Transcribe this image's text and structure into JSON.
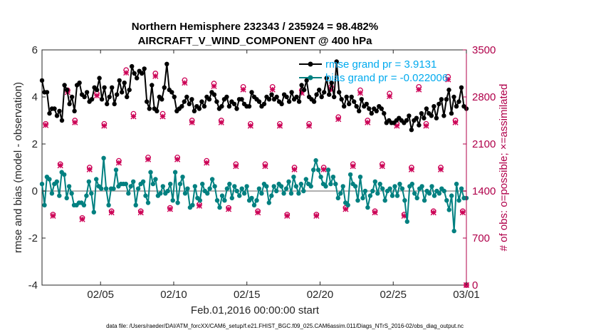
{
  "chart_data": {
    "type": "line",
    "title_line1": "Northern Hemisphere 232343 / 235924 = 98.482%",
    "title_line2": "AIRCRAFT_V_WIND_COMPONENT @ 400 hPa",
    "xlabel": "Feb.01,2016 00:00:00 start",
    "ylabel_left": "rmse and bias (model - observation)",
    "ylabel_right": "# of obs: o=possible; ×=assimilated",
    "x_ticks": [
      "02/05",
      "02/10",
      "02/15",
      "02/20",
      "02/25",
      "03/01"
    ],
    "x_tick_days": [
      4,
      9,
      14,
      19,
      24,
      29
    ],
    "xlim_days": [
      0,
      29
    ],
    "ylim_left": [
      -4,
      6
    ],
    "yticks_left": [
      "-4",
      "-2",
      "0",
      "2",
      "4",
      "6"
    ],
    "ylim_right": [
      0,
      3500
    ],
    "yticks_right": [
      "0",
      "700",
      "1400",
      "2100",
      "2800",
      "3500"
    ],
    "footer": "data file: /Users/raeder/DAI/ATM_forcXX/CAM6_setup/f.e21.FHIST_BGC.f09_025.CAM6assim.011/Diags_NTrS_2016-02/obs_diag_output.nc",
    "colors": {
      "rmse": "#000000",
      "bias": "#008080",
      "obs": "#cc0055",
      "right_axis": "#b0004a",
      "zero": "#b0b0b0"
    },
    "series": [
      {
        "name": "rmse",
        "legend": "rmse grand pr = 3.9131",
        "values": [
          4.7,
          4.2,
          4.2,
          3.3,
          3.5,
          3.5,
          3.2,
          3.4,
          3.0,
          4.5,
          4.3,
          3.7,
          4.0,
          3.4,
          4.5,
          4.6,
          4.1,
          4.0,
          4.2,
          3.8,
          3.9,
          4.4,
          4.3,
          4.8,
          3.9,
          4.4,
          3.7,
          4.0,
          4.4,
          3.7,
          4.1,
          4.7,
          4.2,
          4.6,
          4.0,
          4.3,
          5.3,
          5.0,
          4.8,
          5.1,
          5.0,
          5.2,
          3.8,
          3.5,
          4.5,
          3.5,
          3.4,
          4.0,
          3.9,
          4.4,
          5.4,
          4.3,
          4.2,
          4.0,
          3.4,
          3.5,
          3.6,
          3.8,
          4.0,
          3.7,
          3.9,
          3.4,
          3.6,
          3.5,
          3.8,
          3.6,
          4.0,
          3.9,
          4.2,
          4.1,
          3.8,
          3.5,
          3.6,
          3.9,
          4.0,
          3.6,
          3.8,
          3.7,
          3.5,
          3.9,
          3.9,
          3.7,
          3.6,
          3.6,
          4.2,
          4.0,
          3.9,
          3.8,
          3.6,
          3.7,
          4.0,
          3.9,
          4.1,
          3.9,
          4.0,
          3.8,
          3.7,
          4.1,
          4.0,
          3.8,
          4.2,
          3.9,
          4.0,
          3.8,
          4.5,
          4.3,
          4.7,
          4.0,
          3.9,
          3.8,
          4.1,
          4.3,
          4.0,
          4.2,
          4.8,
          4.1,
          4.6,
          4.0,
          5.5,
          4.2,
          3.9,
          3.6,
          4.0,
          3.7,
          4.0,
          3.8,
          3.6,
          3.4,
          3.9,
          3.6,
          3.7,
          3.5,
          3.3,
          3.5,
          3.4,
          3.6,
          3.5,
          3.3,
          2.9,
          3.0,
          2.9,
          2.9,
          3.0,
          3.1,
          3.0,
          2.9,
          3.0,
          3.2,
          2.6,
          3.0,
          3.1,
          2.8,
          3.3,
          3.1,
          3.5,
          3.3,
          3.2,
          3.6,
          3.1,
          3.7,
          3.9,
          3.2,
          3.9,
          4.3,
          3.3,
          4.0,
          3.6,
          3.8,
          4.4,
          3.6,
          3.5
        ],
        "marker": "dot"
      },
      {
        "name": "bias",
        "legend": "bias grand pr = -0.022006",
        "values": [
          0.3,
          -0.6,
          0.6,
          0.5,
          -0.1,
          0.3,
          0.4,
          -0.2,
          0.8,
          0.7,
          -0.3,
          0.2,
          -0.1,
          -0.6,
          -0.6,
          -0.5,
          -0.5,
          -0.6,
          -0.2,
          0.4,
          -0.1,
          -0.9,
          0.5,
          0.2,
          0.1,
          1.4,
          0.1,
          -0.6,
          0.1,
          0.1,
          0.9,
          0.2,
          0.3,
          0.3,
          0.3,
          -0.1,
          0.2,
          0.4,
          -0.6,
          0.1,
          0.3,
          0.4,
          -0.2,
          -0.5,
          0.8,
          0.3,
          0.5,
          -0.2,
          -0.1,
          0.2,
          -0.1,
          0.0,
          0.3,
          -0.4,
          0.8,
          -0.5,
          0.3,
          0.6,
          -0.1,
          0.1,
          -0.7,
          -0.6,
          0.2,
          -0.3,
          -0.4,
          0.3,
          0.0,
          -0.1,
          0.1,
          0.5,
          0.2,
          -0.4,
          -0.7,
          -0.2,
          -0.4,
          0.1,
          0.3,
          -0.3,
          0.2,
          0.0,
          -0.2,
          0.1,
          -0.1,
          0.2,
          -0.4,
          -0.3,
          -0.6,
          -0.4,
          0.1,
          -0.1,
          0.3,
          0.2,
          -0.5,
          -0.2,
          0.2,
          0.0,
          0.3,
          0.2,
          -0.1,
          0.1,
          0.4,
          -0.1,
          0.6,
          0.2,
          -0.1,
          0.3,
          0.0,
          0.5,
          0.3,
          0.2,
          0.9,
          1.3,
          0.9,
          0.6,
          0.3,
          0.2,
          0.9,
          0.3,
          0.6,
          0.3,
          -0.3,
          -0.1,
          0.2,
          -0.5,
          -0.6,
          0.7,
          0.3,
          0.2,
          -0.4,
          0.6,
          -0.3,
          0.0,
          -0.7,
          -0.2,
          0.0,
          0.4,
          -0.1,
          0.3,
          0.1,
          -0.4,
          0.0,
          0.1,
          -0.2,
          0.2,
          -0.2,
          0.3,
          0.1,
          -0.4,
          -1.3,
          0.2,
          0.3,
          -0.1,
          -0.3,
          0.1,
          0.2,
          -0.4,
          0.0,
          -0.1,
          0.2,
          -0.2,
          0.0,
          -0.1,
          0.1,
          0.0,
          -0.4,
          -0.8,
          -0.2,
          -1.7,
          0.3,
          -0.4,
          0.1,
          -0.3,
          -0.3
        ],
        "marker": "dot"
      }
    ],
    "obs_possible": [
      {
        "day": 0.25,
        "v": 2400
      },
      {
        "day": 0.75,
        "v": 1050
      },
      {
        "day": 1.25,
        "v": 1800
      },
      {
        "day": 1.75,
        "v": 2900
      },
      {
        "day": 2.25,
        "v": 2450
      },
      {
        "day": 2.75,
        "v": 1000
      },
      {
        "day": 3.25,
        "v": 1750
      },
      {
        "day": 3.75,
        "v": 2850
      },
      {
        "day": 4.25,
        "v": 2400
      },
      {
        "day": 4.75,
        "v": 1100
      },
      {
        "day": 5.25,
        "v": 1850
      },
      {
        "day": 5.75,
        "v": 3200
      },
      {
        "day": 6.25,
        "v": 2550
      },
      {
        "day": 6.75,
        "v": 1100
      },
      {
        "day": 7.25,
        "v": 1900
      },
      {
        "day": 7.75,
        "v": 3150
      },
      {
        "day": 8.25,
        "v": 2550
      },
      {
        "day": 8.75,
        "v": 1150
      },
      {
        "day": 9.25,
        "v": 1900
      },
      {
        "day": 9.75,
        "v": 3050
      },
      {
        "day": 10.25,
        "v": 2450
      },
      {
        "day": 10.75,
        "v": 1200
      },
      {
        "day": 11.25,
        "v": 1850
      },
      {
        "day": 11.75,
        "v": 3000
      },
      {
        "day": 12.25,
        "v": 2450
      },
      {
        "day": 12.75,
        "v": 1150
      },
      {
        "day": 13.25,
        "v": 1800
      },
      {
        "day": 13.75,
        "v": 2950
      },
      {
        "day": 14.25,
        "v": 2400
      },
      {
        "day": 14.75,
        "v": 1100
      },
      {
        "day": 15.25,
        "v": 1800
      },
      {
        "day": 15.75,
        "v": 2950
      },
      {
        "day": 16.25,
        "v": 2400
      },
      {
        "day": 16.75,
        "v": 1050
      },
      {
        "day": 17.25,
        "v": 1750
      },
      {
        "day": 17.75,
        "v": 2900
      },
      {
        "day": 18.25,
        "v": 2400
      },
      {
        "day": 18.75,
        "v": 1050
      },
      {
        "day": 19.25,
        "v": 1750
      },
      {
        "day": 19.75,
        "v": 2950
      },
      {
        "day": 20.25,
        "v": 2500
      },
      {
        "day": 20.75,
        "v": 1150
      },
      {
        "day": 21.25,
        "v": 1800
      },
      {
        "day": 21.75,
        "v": 2900
      },
      {
        "day": 22.25,
        "v": 2450
      },
      {
        "day": 22.75,
        "v": 1100
      },
      {
        "day": 23.25,
        "v": 1800
      },
      {
        "day": 23.75,
        "v": 2850
      },
      {
        "day": 24.25,
        "v": 2400
      },
      {
        "day": 24.75,
        "v": 1050
      },
      {
        "day": 25.25,
        "v": 1750
      },
      {
        "day": 25.75,
        "v": 2950
      },
      {
        "day": 26.25,
        "v": 2400
      },
      {
        "day": 26.75,
        "v": 1100
      },
      {
        "day": 27.25,
        "v": 1750
      },
      {
        "day": 27.75,
        "v": 3100
      },
      {
        "day": 28.25,
        "v": 2450
      },
      {
        "day": 28.75,
        "v": 1100
      },
      {
        "day": 29.0,
        "v": 0
      }
    ],
    "obs_assimilated": [
      {
        "day": 0.25,
        "v": 2380
      },
      {
        "day": 0.75,
        "v": 1030
      },
      {
        "day": 1.25,
        "v": 1780
      },
      {
        "day": 1.75,
        "v": 2870
      },
      {
        "day": 2.25,
        "v": 2420
      },
      {
        "day": 2.75,
        "v": 980
      },
      {
        "day": 3.25,
        "v": 1720
      },
      {
        "day": 3.75,
        "v": 2820
      },
      {
        "day": 4.25,
        "v": 2370
      },
      {
        "day": 4.75,
        "v": 1080
      },
      {
        "day": 5.25,
        "v": 1820
      },
      {
        "day": 5.75,
        "v": 3160
      },
      {
        "day": 6.25,
        "v": 2510
      },
      {
        "day": 6.75,
        "v": 1080
      },
      {
        "day": 7.25,
        "v": 1870
      },
      {
        "day": 7.75,
        "v": 3110
      },
      {
        "day": 8.25,
        "v": 2510
      },
      {
        "day": 8.75,
        "v": 1130
      },
      {
        "day": 9.25,
        "v": 1870
      },
      {
        "day": 9.75,
        "v": 3010
      },
      {
        "day": 10.25,
        "v": 2420
      },
      {
        "day": 10.75,
        "v": 1180
      },
      {
        "day": 11.25,
        "v": 1820
      },
      {
        "day": 11.75,
        "v": 2960
      },
      {
        "day": 12.25,
        "v": 2420
      },
      {
        "day": 12.75,
        "v": 1130
      },
      {
        "day": 13.25,
        "v": 1770
      },
      {
        "day": 13.75,
        "v": 2910
      },
      {
        "day": 14.25,
        "v": 2370
      },
      {
        "day": 14.75,
        "v": 1080
      },
      {
        "day": 15.25,
        "v": 1770
      },
      {
        "day": 15.75,
        "v": 2910
      },
      {
        "day": 16.25,
        "v": 2370
      },
      {
        "day": 16.75,
        "v": 1030
      },
      {
        "day": 17.25,
        "v": 1720
      },
      {
        "day": 17.75,
        "v": 2860
      },
      {
        "day": 18.25,
        "v": 2370
      },
      {
        "day": 18.75,
        "v": 1030
      },
      {
        "day": 19.25,
        "v": 1720
      },
      {
        "day": 19.75,
        "v": 2910
      },
      {
        "day": 20.25,
        "v": 2470
      },
      {
        "day": 20.75,
        "v": 1130
      },
      {
        "day": 21.25,
        "v": 1770
      },
      {
        "day": 21.75,
        "v": 2860
      },
      {
        "day": 22.25,
        "v": 2420
      },
      {
        "day": 22.75,
        "v": 1080
      },
      {
        "day": 23.25,
        "v": 1770
      },
      {
        "day": 23.75,
        "v": 2810
      },
      {
        "day": 24.25,
        "v": 2370
      },
      {
        "day": 24.75,
        "v": 1030
      },
      {
        "day": 25.25,
        "v": 1720
      },
      {
        "day": 25.75,
        "v": 2910
      },
      {
        "day": 26.25,
        "v": 2370
      },
      {
        "day": 26.75,
        "v": 1080
      },
      {
        "day": 27.25,
        "v": 1720
      },
      {
        "day": 27.75,
        "v": 3060
      },
      {
        "day": 28.25,
        "v": 2420
      },
      {
        "day": 28.75,
        "v": 1080
      },
      {
        "day": 29.0,
        "v": 0
      }
    ]
  }
}
